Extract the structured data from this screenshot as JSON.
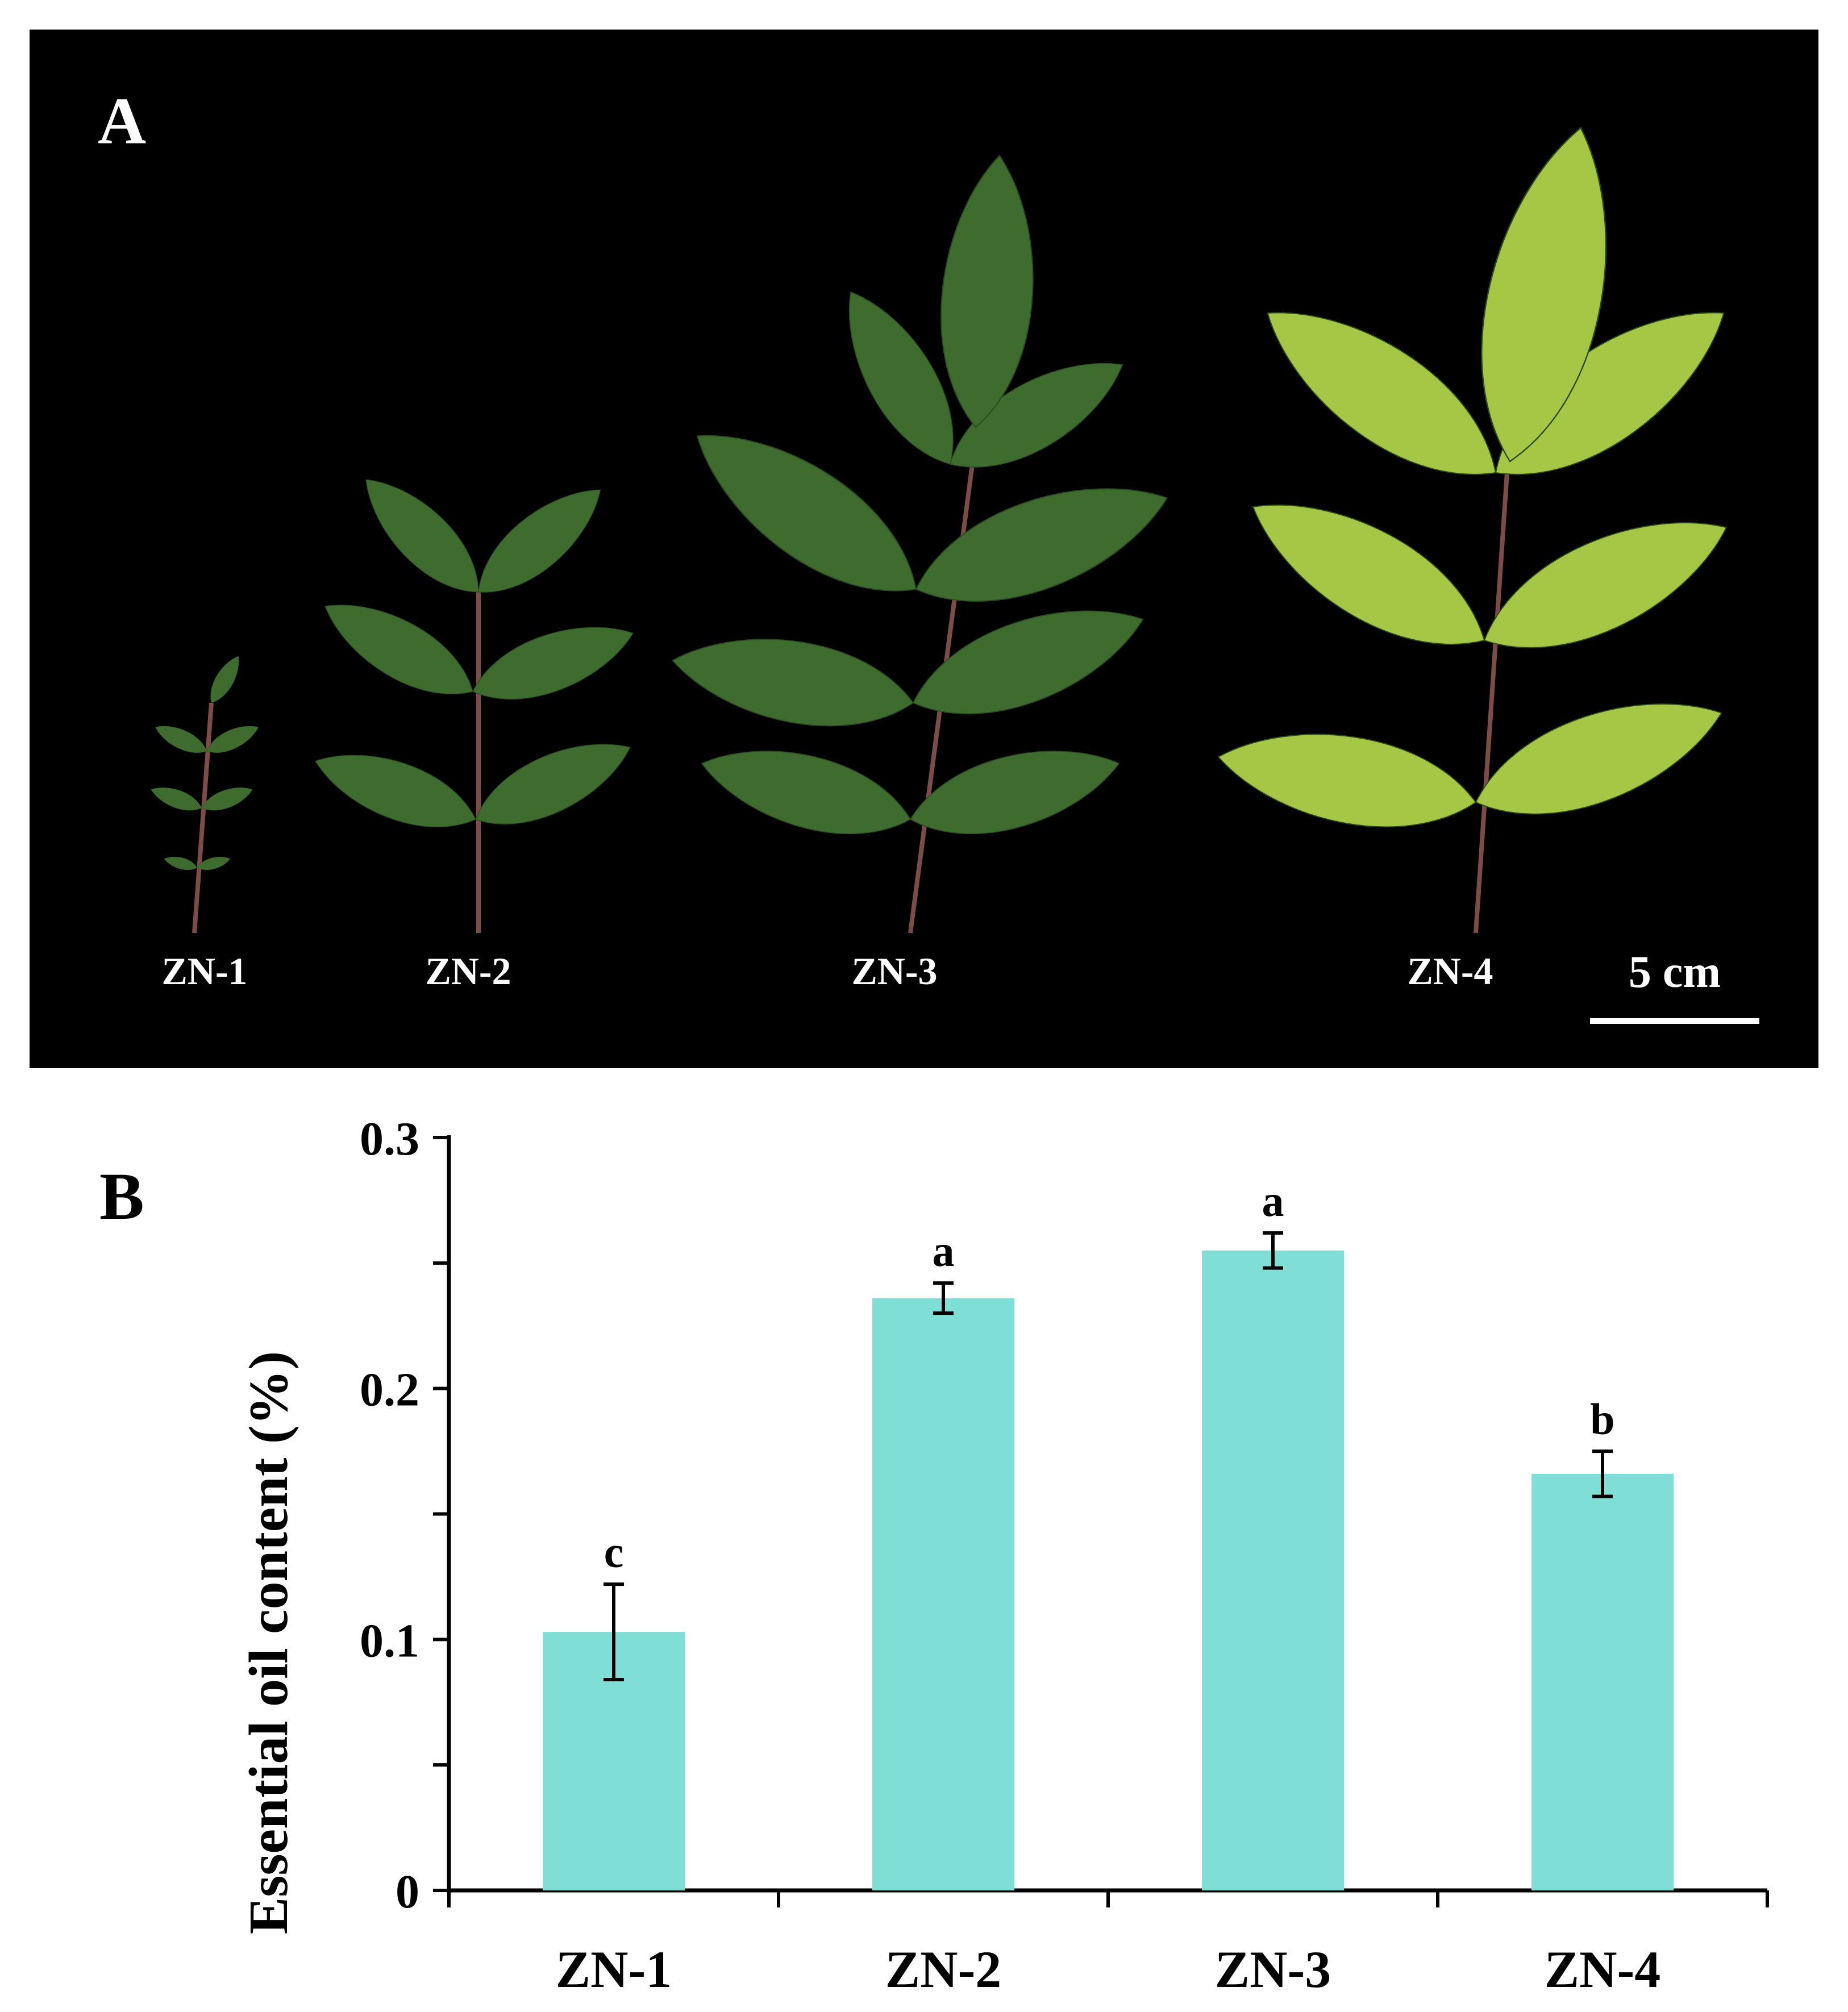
{
  "panel_a": {
    "letter": "A",
    "specimen_labels": [
      "ZN-1",
      "ZN-2",
      "ZN-3",
      "ZN-4"
    ],
    "scale_bar_label": "5 cm",
    "colors": {
      "background": "#000000",
      "label": "#ffffff",
      "dark_leaf": "#3e6b2e",
      "light_leaf": "#a6c746",
      "stem": "#7d4b48"
    }
  },
  "panel_b": {
    "letter": "B"
  },
  "chart_data": {
    "type": "bar",
    "categories": [
      "ZN-1",
      "ZN-2",
      "ZN-3",
      "ZN-4"
    ],
    "values": [
      0.103,
      0.236,
      0.255,
      0.166
    ],
    "errors": [
      0.019,
      0.006,
      0.007,
      0.009
    ],
    "significance_letters": [
      "c",
      "a",
      "a",
      "b"
    ],
    "ylabel": "Essential oil content (%)",
    "xlabel": "",
    "title": "",
    "ylim": [
      0,
      0.3
    ],
    "ytick_labels": [
      "0",
      "0.1",
      "0.2",
      "0.3"
    ],
    "ytick_values": [
      0,
      0.1,
      0.2,
      0.3
    ],
    "minor_tick_step": 0.05,
    "grid": false,
    "bar_color": "#7fdfd6"
  }
}
